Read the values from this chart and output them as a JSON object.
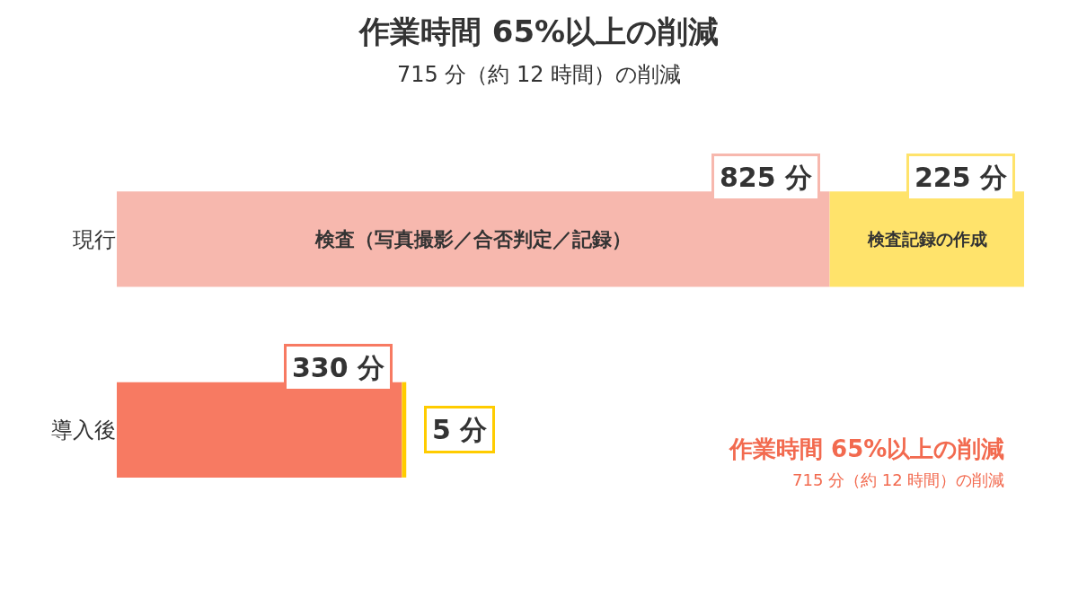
{
  "chart_data": {
    "type": "bar",
    "orientation": "horizontal",
    "stacked": true,
    "title": "作業時間 65%以上の削減",
    "subtitle": "715 分（約 12 時間）の削減",
    "categories": [
      "現行",
      "導入後"
    ],
    "series": [
      {
        "name": "検査（写真撮影／合否判定／記録）",
        "colors": [
          "#f7b8ae",
          "#f77a62"
        ],
        "values": [
          825,
          330
        ],
        "value_labels": [
          "825 分",
          "330 分"
        ]
      },
      {
        "name": "検査記録の作成",
        "colors": [
          "#ffe36b",
          "#ffcc00"
        ],
        "values": [
          225,
          5
        ],
        "value_labels": [
          "225 分",
          "5 分"
        ]
      }
    ],
    "annotations": [
      "作業時間 65%以上の削減",
      "715 分（約 12 時間）の削減"
    ],
    "legend": false
  }
}
